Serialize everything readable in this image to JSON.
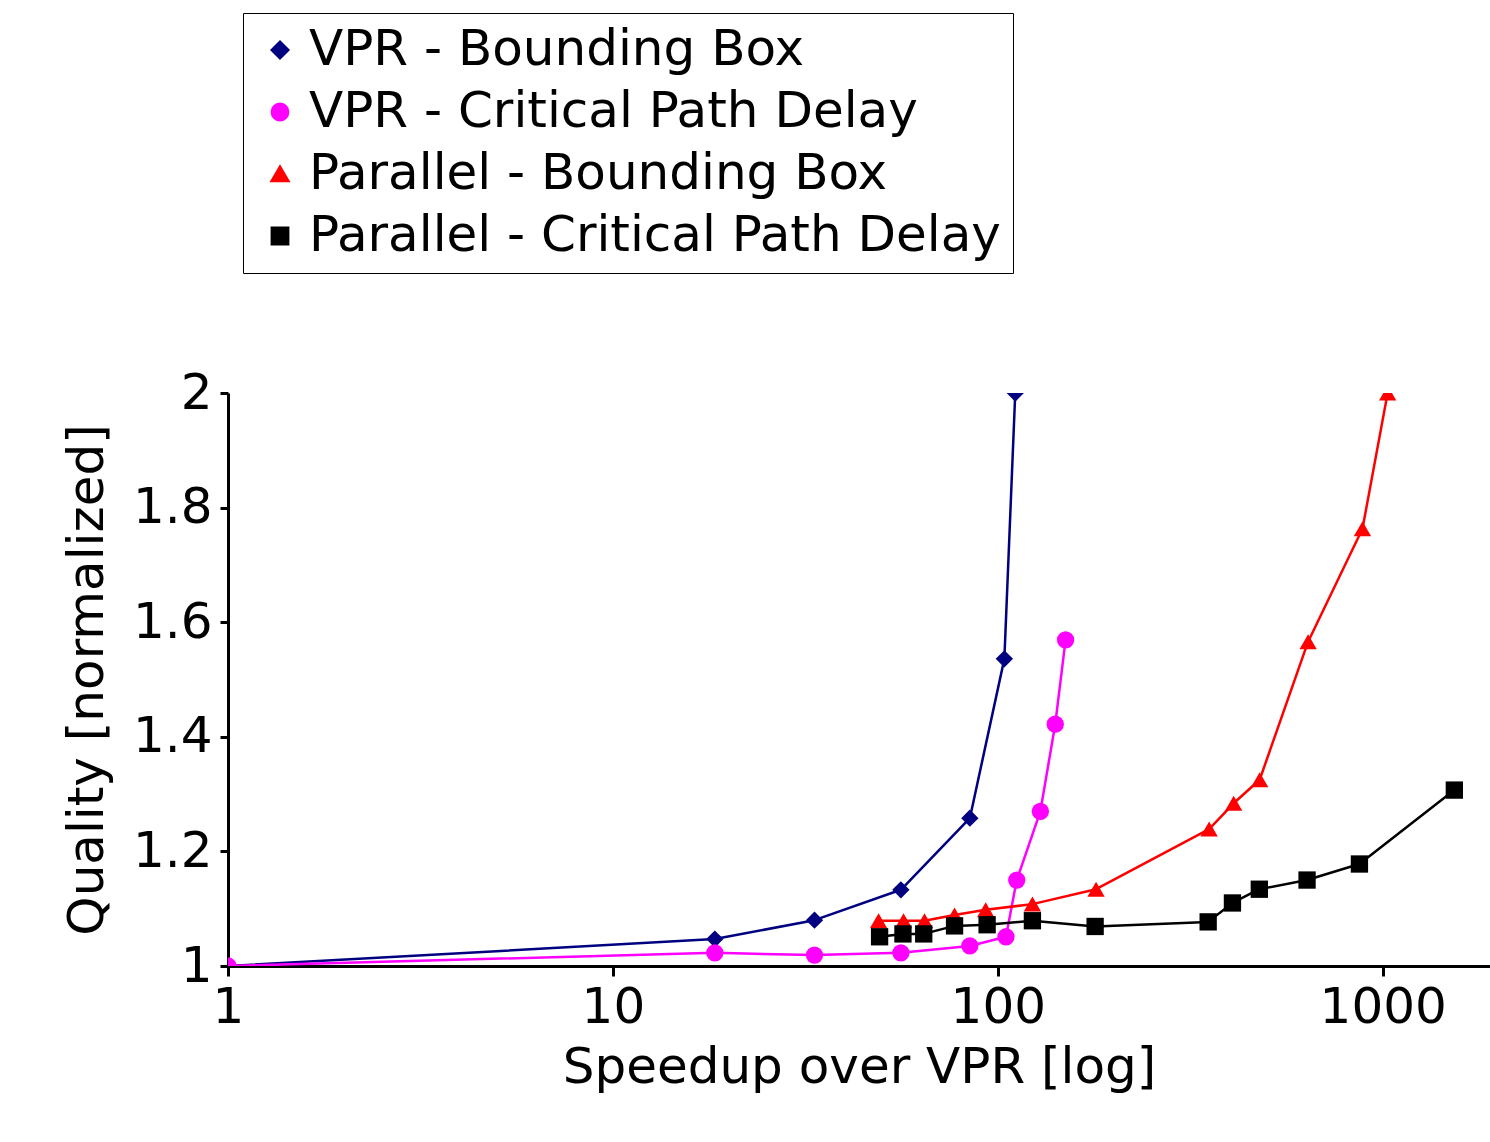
{
  "chart_data": {
    "type": "line",
    "xlabel": "Speedup over VPR [log]",
    "ylabel": "Quality [normalized]",
    "log": "x",
    "xlim": [
      1,
      1900
    ],
    "xticks": [
      1,
      10,
      100,
      1000
    ],
    "ylim": [
      1,
      2
    ],
    "yticks": [
      1,
      1.2,
      1.4,
      1.6,
      1.8,
      2
    ],
    "grid": false,
    "legend": "top",
    "series": [
      {
        "name": "VPR - Bounding Box",
        "color": "#000080",
        "marker": "diamond",
        "x": [
          1,
          18.4,
          33.4,
          56,
          84.6,
          104,
          111
        ],
        "values": [
          1,
          1.047,
          1.08,
          1.133,
          1.258,
          1.536,
          2.0
        ]
      },
      {
        "name": "VPR - Critical Path Delay",
        "color": "#ff00ff",
        "marker": "circle",
        "x": [
          1,
          18.4,
          33.4,
          56,
          84.6,
          105,
          112,
          129,
          141,
          150
        ],
        "values": [
          1,
          1.023,
          1.019,
          1.023,
          1.035,
          1.051,
          1.15,
          1.27,
          1.422,
          1.569
        ]
      },
      {
        "name": "Parallel - Bounding Box",
        "color": "#ff0000",
        "marker": "triangle",
        "x": [
          49,
          56.9,
          64.5,
          77.2,
          93,
          123,
          180,
          354,
          410,
          479,
          640,
          886,
          1030
        ],
        "values": [
          1.079,
          1.079,
          1.079,
          1.089,
          1.098,
          1.108,
          1.134,
          1.239,
          1.284,
          1.325,
          1.566,
          1.763,
          2.0
        ]
      },
      {
        "name": "Parallel - Critical Path Delay",
        "color": "#000000",
        "marker": "square",
        "x": [
          49.3,
          56.7,
          64.2,
          77.2,
          93.8,
          123,
          179,
          352,
          407,
          478,
          636,
          870,
          1535
        ],
        "values": [
          1.051,
          1.056,
          1.056,
          1.07,
          1.072,
          1.079,
          1.069,
          1.077,
          1.11,
          1.134,
          1.15,
          1.178,
          1.307
        ]
      }
    ]
  }
}
